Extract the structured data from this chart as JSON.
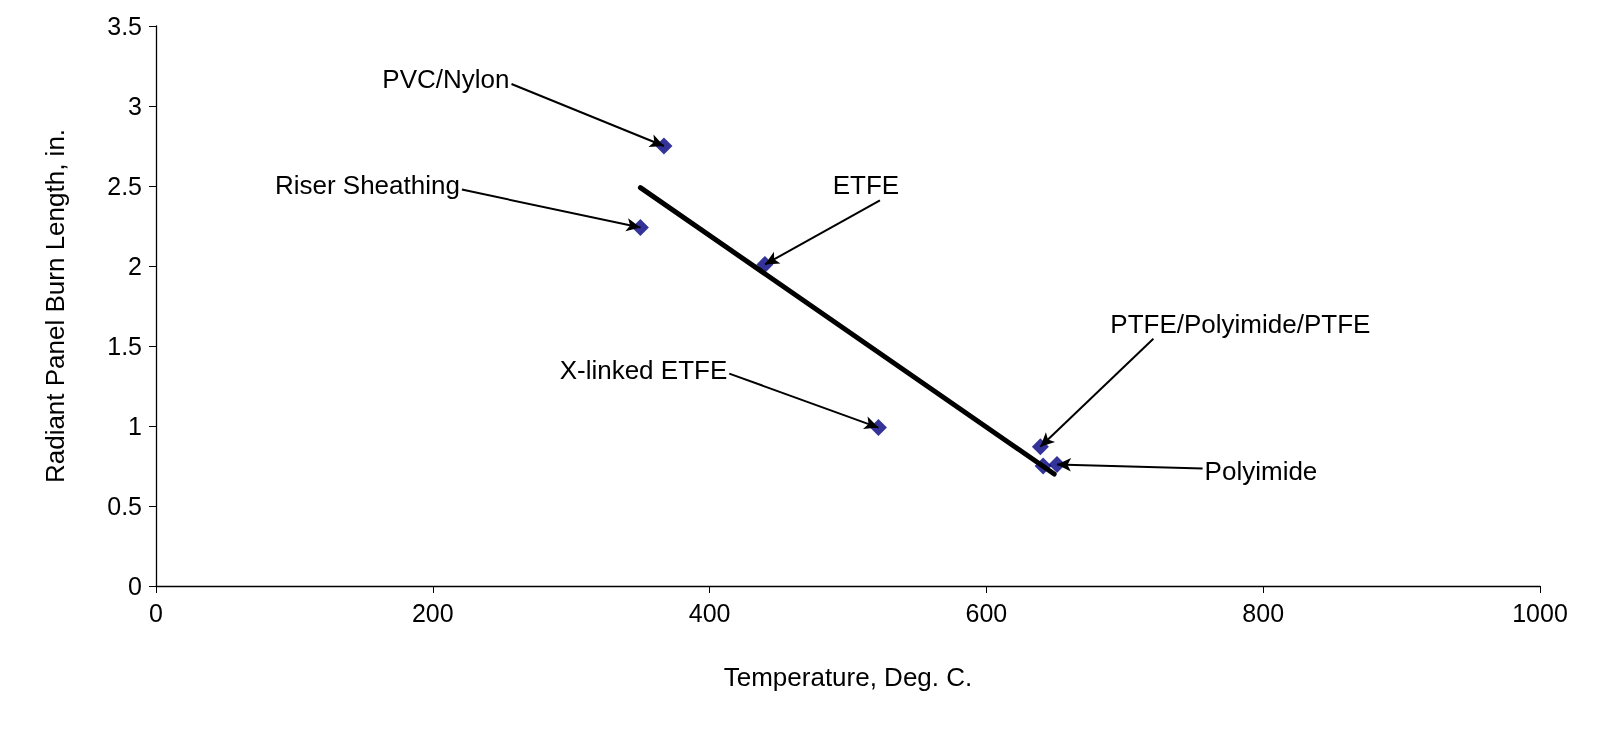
{
  "chart_data": {
    "type": "scatter",
    "xlabel": "Temperature, Deg. C.",
    "ylabel": "Radiant Panel Burn Length, in.",
    "xlim": [
      0,
      1000
    ],
    "xticks": [
      0,
      200,
      400,
      600,
      800,
      1000
    ],
    "ylim": [
      0,
      3.5
    ],
    "yticks": [
      0,
      0.5,
      1,
      1.5,
      2,
      2.5,
      3,
      3.5
    ],
    "grid": false,
    "marker": "diamond",
    "series": [
      {
        "color": "#000080",
        "x": [
          367,
          350,
          440,
          522,
          639,
          641,
          651
        ],
        "values": [
          2.75,
          2.24,
          2.01,
          0.99,
          0.87,
          0.75,
          0.76
        ]
      },
      {
        "type": "line",
        "color": "#000000",
        "marker": "none",
        "line_style": "solid",
        "x": [
          350,
          649
        ],
        "values": [
          2.49,
          0.7
        ]
      }
    ],
    "annotations": [
      {
        "text": "PVC/Nylon",
        "x": 367,
        "y": 2.75
      },
      {
        "text": "Riser Sheathing",
        "x": 350,
        "y": 2.24
      },
      {
        "text": "ETFE",
        "x": 440,
        "y": 2.01
      },
      {
        "text": "X-linked ETFE",
        "x": 522,
        "y": 0.99
      },
      {
        "text": "PTFE/Polyimide/PTFE",
        "x": 639,
        "y": 0.87
      },
      {
        "text": "Polyimide",
        "x": 651,
        "y": 0.76
      }
    ]
  }
}
